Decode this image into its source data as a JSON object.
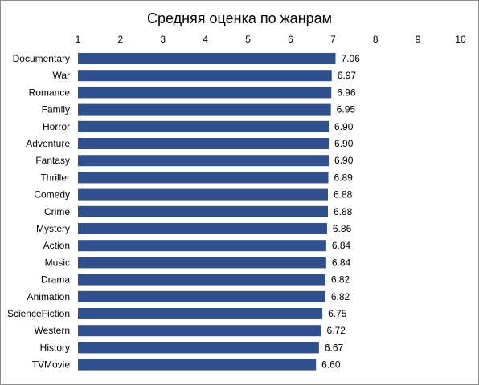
{
  "chart_data": {
    "type": "bar",
    "orientation": "horizontal",
    "title": "Средняя оценка по жанрам",
    "xlabel": "",
    "ylabel": "",
    "xlim": [
      1,
      10
    ],
    "x_ticks": [
      "1",
      "2",
      "3",
      "4",
      "5",
      "6",
      "7",
      "8",
      "9",
      "10"
    ],
    "axis_position": "top",
    "grid": false,
    "legend": "none",
    "bar_color": "#2F4F8F",
    "categories": [
      "Documentary",
      "War",
      "Romance",
      "Family",
      "Horror",
      "Adventure",
      "Fantasy",
      "Thriller",
      "Comedy",
      "Crime",
      "Mystery",
      "Action",
      "Music",
      "Drama",
      "Animation",
      "ScienceFiction",
      "Western",
      "History",
      "TVMovie"
    ],
    "values": [
      7.06,
      6.97,
      6.96,
      6.95,
      6.9,
      6.9,
      6.9,
      6.89,
      6.88,
      6.88,
      6.86,
      6.84,
      6.84,
      6.82,
      6.82,
      6.75,
      6.72,
      6.67,
      6.6
    ],
    "value_labels": [
      "7.06",
      "6.97",
      "6.96",
      "6.95",
      "6.90",
      "6.90",
      "6.90",
      "6.89",
      "6.88",
      "6.88",
      "6.86",
      "6.84",
      "6.84",
      "6.82",
      "6.82",
      "6.75",
      "6.72",
      "6.67",
      "6.60"
    ]
  }
}
